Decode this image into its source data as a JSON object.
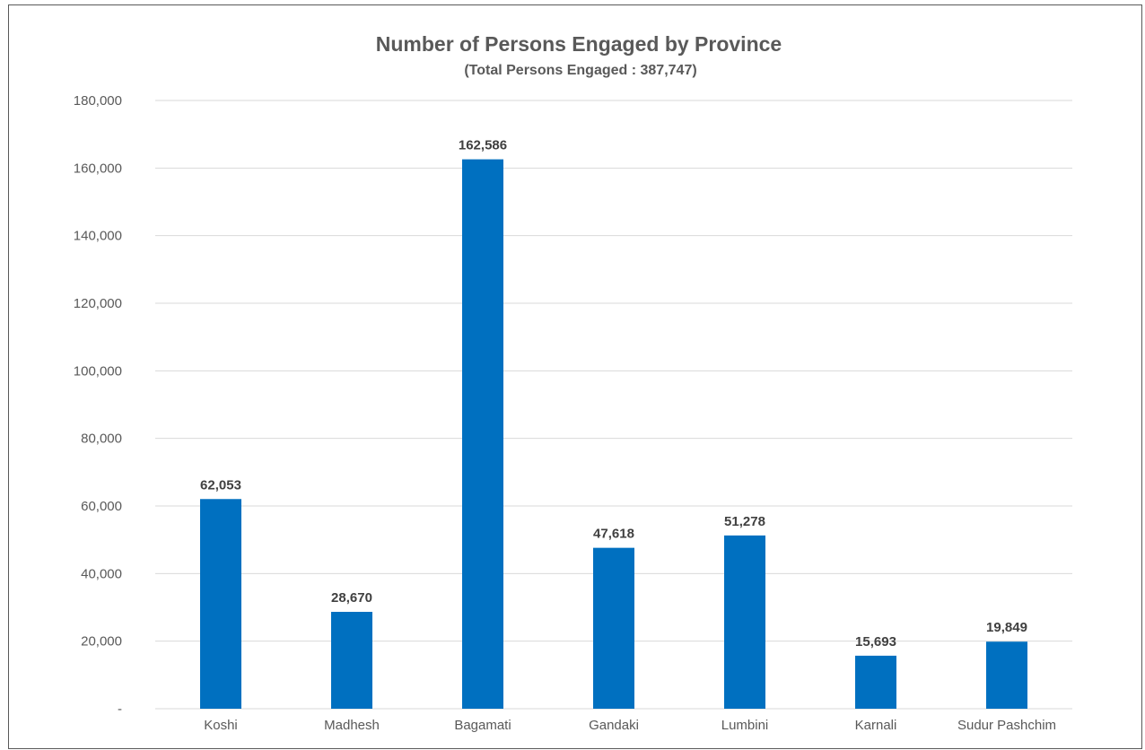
{
  "chart_data": {
    "type": "bar",
    "title": "Number of Persons Engaged by Province",
    "subtitle": "(Total Persons Engaged : 387,747)",
    "xlabel": "",
    "ylabel": "",
    "categories": [
      "Koshi",
      "Madhesh",
      "Bagamati",
      "Gandaki",
      "Lumbini",
      "Karnali",
      "Sudur Pashchim"
    ],
    "values": [
      62053,
      28670,
      162586,
      47618,
      51278,
      15693,
      19849
    ],
    "data_labels": [
      "62,053",
      "28,670",
      "162,586",
      "47,618",
      "51,278",
      "15,693",
      "19,849"
    ],
    "ylim": [
      0,
      180000
    ],
    "y_ticks": [
      0,
      20000,
      40000,
      60000,
      80000,
      100000,
      120000,
      140000,
      160000,
      180000
    ],
    "y_tick_labels": [
      "-",
      "20,000",
      "40,000",
      "60,000",
      "80,000",
      "100,000",
      "120,000",
      "140,000",
      "160,000",
      "180,000"
    ],
    "grid": true,
    "legend": "none",
    "bar_color": "#0070C0",
    "gridline_color": "#D9D9D9"
  }
}
